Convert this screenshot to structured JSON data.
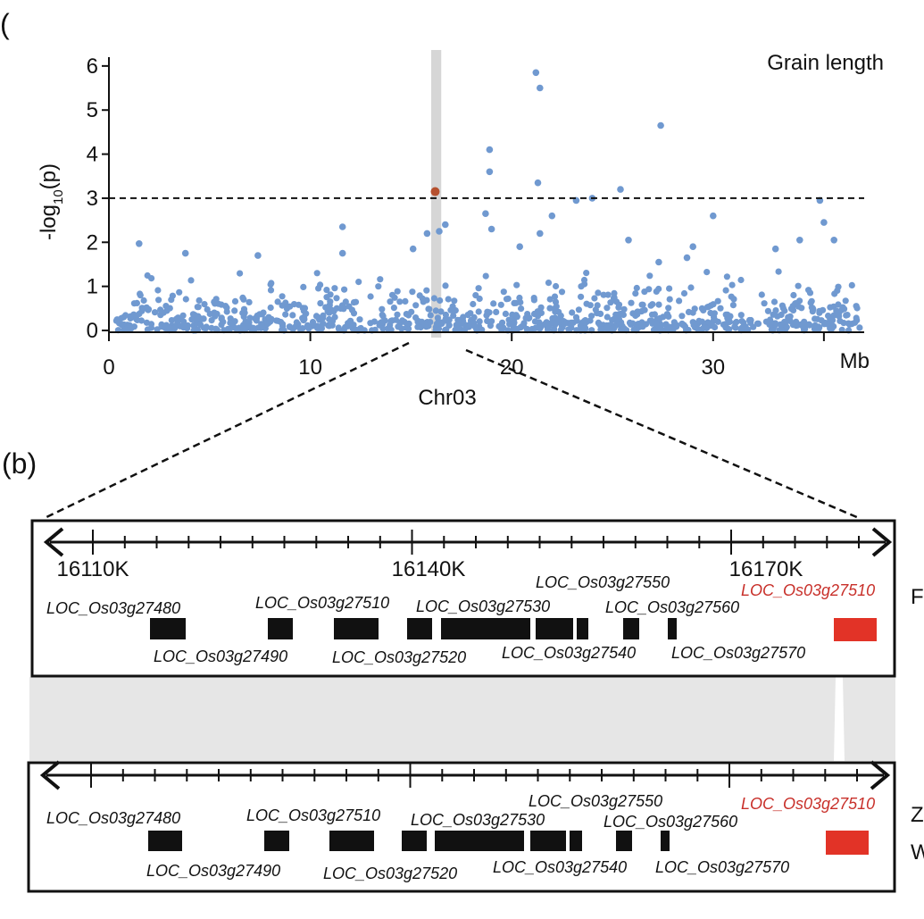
{
  "panel_a_label": "(",
  "panel_b_label": "(b)",
  "chart_data": {
    "type": "scatter",
    "title": "Grain length",
    "xlabel": "Chr03",
    "x_unit": "Mb",
    "ylabel_parts": [
      "-log",
      "10",
      "(p)"
    ],
    "xlim": [
      0,
      37.5
    ],
    "ylim": [
      0,
      6.2
    ],
    "x_ticks": [
      "0",
      "10",
      "20",
      "30"
    ],
    "y_ticks": [
      "0",
      "1",
      "2",
      "3",
      "4",
      "5",
      "6"
    ],
    "threshold": 3,
    "highlight_region_mb": [
      16.0,
      16.5
    ],
    "highlight_point": {
      "x": 16.2,
      "y": 3.15
    },
    "notable_points": [
      {
        "x": 21.2,
        "y": 5.85
      },
      {
        "x": 21.4,
        "y": 5.5
      },
      {
        "x": 27.4,
        "y": 4.65
      },
      {
        "x": 18.9,
        "y": 4.1
      },
      {
        "x": 18.9,
        "y": 3.6
      },
      {
        "x": 21.3,
        "y": 3.35
      },
      {
        "x": 25.4,
        "y": 3.2
      },
      {
        "x": 24.0,
        "y": 3.0
      },
      {
        "x": 23.2,
        "y": 2.95
      },
      {
        "x": 35.3,
        "y": 2.95
      },
      {
        "x": 35.5,
        "y": 2.45
      },
      {
        "x": 30.0,
        "y": 2.6
      },
      {
        "x": 22.0,
        "y": 2.6
      },
      {
        "x": 18.7,
        "y": 2.65
      },
      {
        "x": 19.0,
        "y": 2.3
      },
      {
        "x": 16.4,
        "y": 2.25
      },
      {
        "x": 16.7,
        "y": 2.4
      },
      {
        "x": 11.6,
        "y": 2.35
      },
      {
        "x": 15.8,
        "y": 2.2
      },
      {
        "x": 21.4,
        "y": 2.2
      },
      {
        "x": 25.8,
        "y": 2.05
      },
      {
        "x": 36.0,
        "y": 2.05
      },
      {
        "x": 20.4,
        "y": 1.9
      },
      {
        "x": 1.5,
        "y": 1.97
      },
      {
        "x": 3.8,
        "y": 1.75
      },
      {
        "x": 7.4,
        "y": 1.7
      },
      {
        "x": 11.6,
        "y": 1.75
      },
      {
        "x": 15.1,
        "y": 1.85
      },
      {
        "x": 34.3,
        "y": 2.05
      },
      {
        "x": 33.1,
        "y": 1.85
      },
      {
        "x": 28.7,
        "y": 1.65
      },
      {
        "x": 29.0,
        "y": 1.9
      },
      {
        "x": 27.3,
        "y": 1.55
      }
    ],
    "background_points": {
      "count": 900,
      "x_range": [
        0.3,
        37.3
      ],
      "y_exp_mean": 0.35,
      "y_max": 1.6,
      "color": "#7099d0"
    },
    "point_color": "#7099d0",
    "highlight_color": "#b5502e",
    "region_color": "#d6d6d6"
  },
  "region_track": {
    "ticks_k": [
      "16110K",
      "16140K",
      "16170K"
    ],
    "top_genes": [
      {
        "id": "LOC_Os03g27480",
        "start": 0.0,
        "end": 0.0,
        "color": "#111111"
      }
    ],
    "top_block_labels": [
      {
        "text": "LOC_Os03g27480",
        "pos": "above",
        "color": "#111111"
      },
      {
        "text": "LOC_Os03g27490",
        "pos": "below",
        "color": "#111111"
      },
      {
        "text": "LOC_Os03g27510",
        "pos": "above",
        "color": "#111111"
      },
      {
        "text": "LOC_Os03g27530",
        "pos": "above",
        "color": "#111111"
      },
      {
        "text": "LOC_Os03g27520",
        "pos": "below",
        "color": "#111111"
      },
      {
        "text": "LOC_Os03g27550",
        "pos": "above",
        "color": "#111111"
      },
      {
        "text": "LOC_Os03g27560",
        "pos": "above",
        "color": "#111111"
      },
      {
        "text": "LOC_Os03g27540",
        "pos": "below",
        "color": "#111111"
      },
      {
        "text": "LOC_Os03g27570",
        "pos": "below",
        "color": "#111111"
      },
      {
        "text": "LOC_Os03g27510",
        "pos": "above",
        "color": "#c8302a"
      }
    ],
    "genome_1_label": "F",
    "genome_2_label_1": "Z",
    "genome_2_label_2": "W",
    "gene_block_color": "#111111",
    "highlight_gene_color": "#e23327",
    "synteny_color": "#e6e6e6"
  }
}
